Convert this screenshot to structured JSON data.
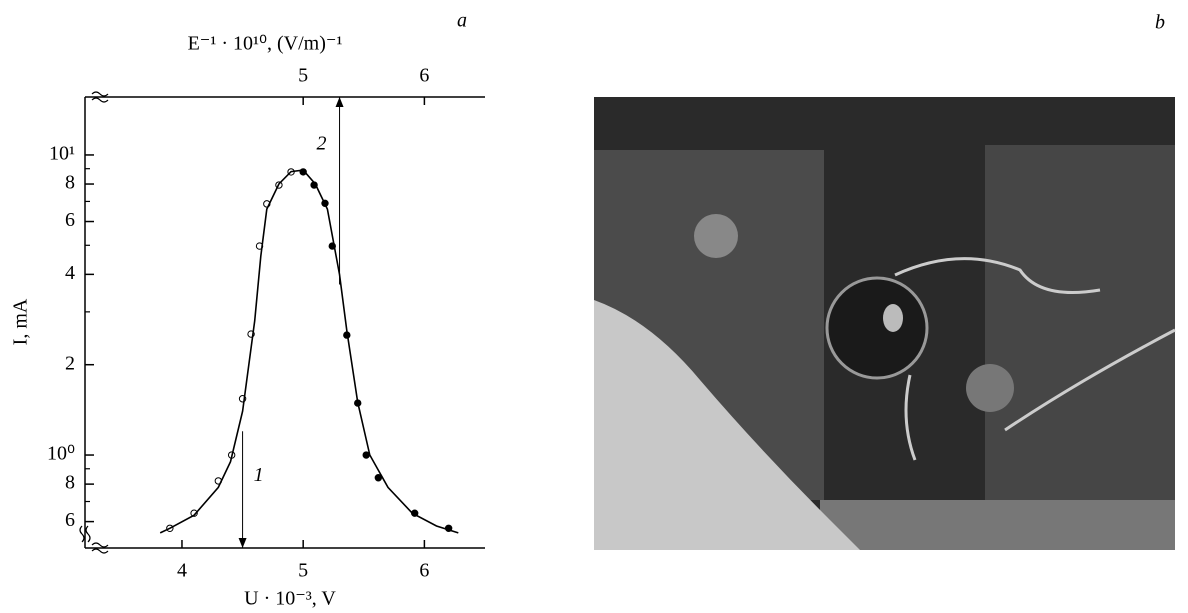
{
  "chart_data": {
    "type": "scatter",
    "panel_label": "a",
    "photo_label": "b",
    "xlabel": "U · 10⁻³, V",
    "ylabel": "I, mA",
    "x2label": "E⁻¹ · 10¹⁰, (V/m)⁻¹",
    "xlim": [
      3.2,
      6.5
    ],
    "xticks": [
      4,
      5,
      6
    ],
    "x2lim": [
      3.2,
      6.5
    ],
    "x2ticks": [
      5,
      6
    ],
    "ylim": [
      0.49,
      15.6
    ],
    "log_y": true,
    "yticks": [
      {
        "value": 0.6,
        "label": "6"
      },
      {
        "value": 0.8,
        "label": "8"
      },
      {
        "value": 1,
        "label": "10⁰"
      },
      2,
      4,
      6,
      8,
      {
        "value": 10,
        "label": "10¹"
      }
    ],
    "yminorticks": [
      0.7,
      0.9,
      3,
      5,
      7,
      9
    ],
    "series": [
      {
        "marker": "open",
        "color": "#000000",
        "x": [
          3.9,
          4.1,
          4.3,
          4.41,
          4.5,
          4.57,
          4.64,
          4.7,
          4.8,
          4.9
        ],
        "values": [
          0.57,
          0.64,
          0.82,
          1.0,
          1.54,
          2.53,
          4.97,
          6.87,
          7.94,
          8.78
        ]
      },
      {
        "marker": "filled",
        "color": "#000000",
        "x": [
          5.0,
          5.09,
          5.18,
          5.24,
          5.36,
          5.45,
          5.52,
          5.62,
          5.92,
          6.2
        ],
        "values": [
          8.78,
          7.94,
          6.9,
          4.97,
          2.51,
          1.49,
          1.0,
          0.84,
          0.64,
          0.57
        ]
      },
      {
        "marker": "line",
        "color": "#000000",
        "x": [
          3.82,
          3.9,
          4.1,
          4.3,
          4.4,
          4.5,
          4.6,
          4.65,
          4.7,
          4.8,
          4.9,
          5.0,
          5.1,
          5.2,
          5.3,
          5.36,
          5.45,
          5.55,
          5.7,
          5.9,
          6.1,
          6.28
        ],
        "values": [
          0.55,
          0.57,
          0.63,
          0.78,
          0.95,
          1.4,
          2.8,
          4.6,
          6.6,
          8.0,
          8.8,
          8.9,
          8.0,
          6.6,
          4.0,
          2.6,
          1.5,
          1.0,
          0.78,
          0.64,
          0.58,
          0.55
        ]
      }
    ],
    "arrows": [
      {
        "label": "1",
        "x": 4.5,
        "from": 1.2,
        "direction": "down"
      },
      {
        "label": "2",
        "x": 5.3,
        "from": 3.7,
        "direction": "up"
      }
    ]
  }
}
